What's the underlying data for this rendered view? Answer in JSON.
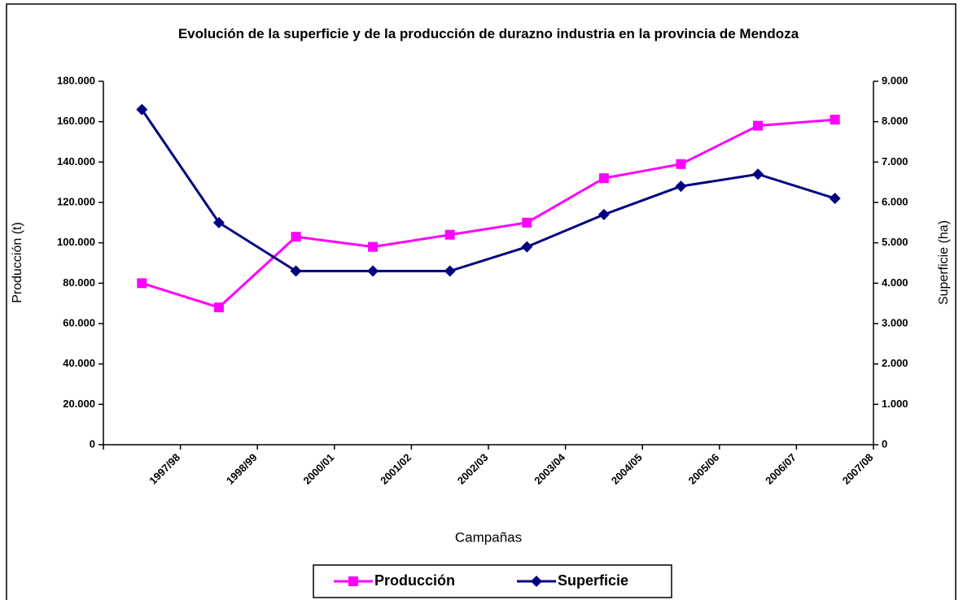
{
  "chart_data": {
    "type": "line",
    "title": "Evolución de la superficie y de la producción de durazno industria en la provincia de Mendoza",
    "xlabel": "Campañas",
    "ylabel": "Producción (t)",
    "y2label": "Superficie (ha)",
    "categories": [
      "1997/98",
      "1998/99",
      "2000/01",
      "2001/02",
      "2002/03",
      "2003/04",
      "2004/05",
      "2005/06",
      "2006/07",
      "2007/08"
    ],
    "series": [
      {
        "name": "Producción",
        "color": "#ff00ff",
        "marker": "square",
        "values": [
          80000,
          68000,
          103000,
          98000,
          104000,
          110000,
          132000,
          139000,
          158000,
          161000
        ]
      },
      {
        "name": "Superficie",
        "color": "#000080",
        "marker": "diamond",
        "axis": "y2",
        "values": [
          8300,
          5500,
          4300,
          4300,
          4300,
          4900,
          5700,
          6400,
          6700,
          6100
        ]
      }
    ],
    "ylim": [
      0,
      180000
    ],
    "yticks": [
      0,
      {
        "value": 20000,
        "label": "20.000"
      },
      {
        "value": 40000,
        "label": "40.000"
      },
      {
        "value": 60000,
        "label": "60.000"
      },
      {
        "value": 80000,
        "label": "80.000"
      },
      {
        "value": 100000,
        "label": "100.000"
      },
      {
        "value": 120000,
        "label": "120.000"
      },
      {
        "value": 140000,
        "label": "140.000"
      },
      {
        "value": 160000,
        "label": "160.000"
      },
      {
        "value": 180000,
        "label": "180.000"
      }
    ],
    "y2lim": [
      0,
      9000
    ],
    "y2ticks": [
      0,
      {
        "value": 1000,
        "label": "1.000"
      },
      {
        "value": 2000,
        "label": "2.000"
      },
      {
        "value": 3000,
        "label": "3.000"
      },
      {
        "value": 4000,
        "label": "4.000"
      },
      {
        "value": 5000,
        "label": "5.000"
      },
      {
        "value": 6000,
        "label": "6.000"
      },
      {
        "value": 7000,
        "label": "7.000"
      },
      {
        "value": 8000,
        "label": "8.000"
      },
      {
        "value": 9000,
        "label": "9.000"
      }
    ],
    "grid": false,
    "legend": "bottom"
  }
}
